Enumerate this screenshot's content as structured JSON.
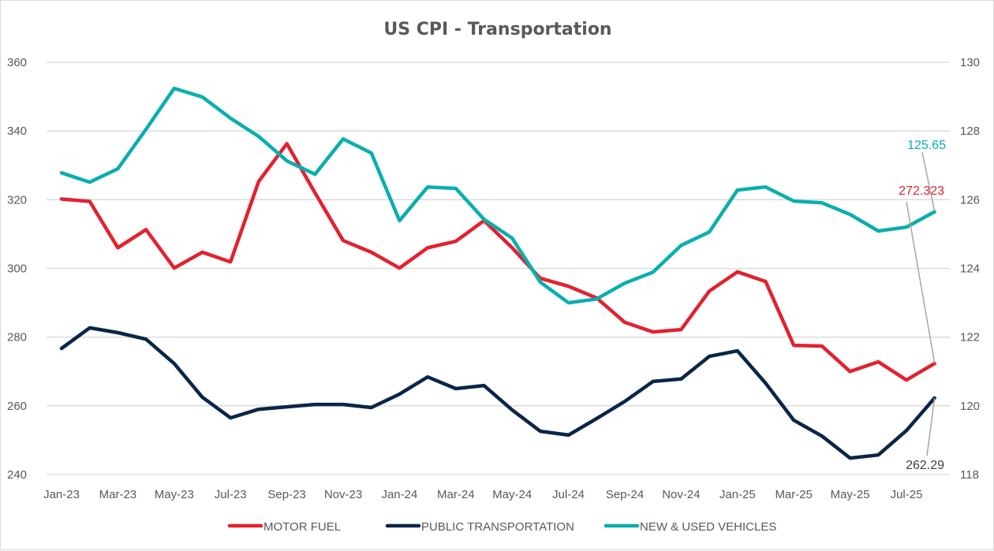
{
  "chart_data": {
    "type": "line",
    "title": "US CPI - Transportation",
    "xlabel": "",
    "ylabel_left": "",
    "ylabel_right": "",
    "x": [
      "Jan-23",
      "Feb-23",
      "Mar-23",
      "Apr-23",
      "May-23",
      "Jun-23",
      "Jul-23",
      "Aug-23",
      "Sep-23",
      "Oct-23",
      "Nov-23",
      "Dec-23",
      "Jan-24",
      "Feb-24",
      "Mar-24",
      "Apr-24",
      "May-24",
      "Jun-24",
      "Jul-24",
      "Aug-24",
      "Sep-24",
      "Oct-24",
      "Nov-24",
      "Dec-24",
      "Jan-25",
      "Feb-25",
      "Mar-25",
      "Apr-25",
      "May-25",
      "Jun-25",
      "Jul-25",
      "Aug-25"
    ],
    "x_tick_labels": [
      "Jan-23",
      "Mar-23",
      "May-23",
      "Jul-23",
      "Sep-23",
      "Nov-23",
      "Jan-24",
      "Mar-24",
      "May-24",
      "Jul-24",
      "Sep-24",
      "Nov-24",
      "Jan-25",
      "Mar-25",
      "May-25",
      "Jul-25"
    ],
    "y_left": {
      "range": [
        240,
        360
      ],
      "ticks": [
        "240",
        "260",
        "280",
        "300",
        "320",
        "340",
        "360"
      ]
    },
    "y_right": {
      "range": [
        118,
        130
      ],
      "ticks": [
        "118",
        "120",
        "122",
        "124",
        "126",
        "128",
        "130"
      ]
    },
    "grid": true,
    "legend_position": "bottom",
    "series": [
      {
        "name": "MOTOR FUEL",
        "axis": "left",
        "color": "#e3212f",
        "values": [
          320.2,
          319.5,
          306.0,
          311.3,
          300.1,
          304.7,
          301.9,
          325.3,
          336.3,
          322.0,
          308.1,
          304.7,
          300.1,
          306.0,
          307.9,
          313.9,
          306.0,
          297.1,
          294.8,
          291.4,
          284.3,
          281.5,
          282.2,
          293.4,
          299.0,
          296.2,
          277.6,
          277.4,
          270.0,
          272.8,
          267.5,
          272.323
        ],
        "last_label": "272.323"
      },
      {
        "name": "PUBLIC TRANSPORTATION",
        "axis": "left",
        "color": "#0a2647",
        "values": [
          276.7,
          282.7,
          281.3,
          279.4,
          272.3,
          262.5,
          256.5,
          259.0,
          259.7,
          260.4,
          260.4,
          259.5,
          263.4,
          268.4,
          265.0,
          265.9,
          258.8,
          252.6,
          251.5,
          256.3,
          261.3,
          267.1,
          267.8,
          274.4,
          276.0,
          266.6,
          255.8,
          251.2,
          244.8,
          245.7,
          252.8,
          262.29
        ],
        "last_label": "262.29"
      },
      {
        "name": "NEW & USED VEHICLES",
        "axis": "right",
        "color": "#0aaeae",
        "values": [
          126.78,
          126.51,
          126.9,
          128.05,
          129.24,
          128.99,
          128.37,
          127.84,
          127.13,
          126.74,
          127.77,
          127.36,
          125.39,
          126.37,
          126.33,
          125.43,
          124.88,
          123.6,
          123.0,
          123.11,
          123.57,
          123.89,
          124.67,
          125.06,
          126.28,
          126.37,
          125.96,
          125.91,
          125.57,
          125.09,
          125.2,
          125.65
        ],
        "last_label": "125.65"
      }
    ]
  }
}
